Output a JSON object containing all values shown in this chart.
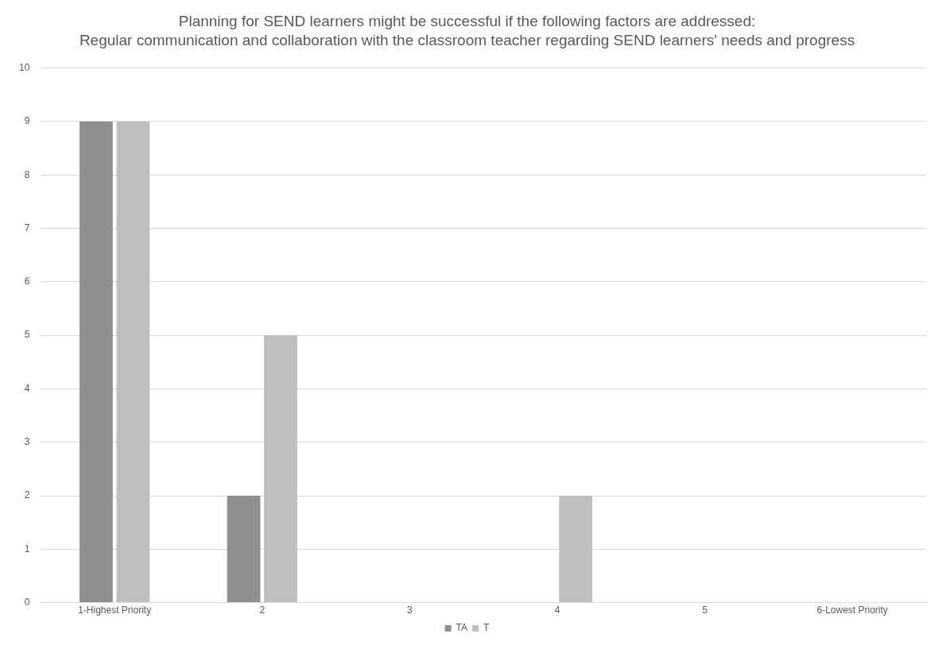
{
  "chart_data": {
    "type": "bar",
    "title": "Planning for SEND learners might be successful if the following factors are addressed:",
    "subtitle": "Regular communication and collaboration with the classroom teacher regarding SEND learners' needs and progress",
    "categories": [
      "1-Highest Priority",
      "2",
      "3",
      "4",
      "5",
      "6-Lowest Priority"
    ],
    "series": [
      {
        "name": "TA",
        "color": "#8f8f8f",
        "values": [
          9,
          2,
          0,
          0,
          0,
          0
        ]
      },
      {
        "name": "T",
        "color": "#bfbfbf",
        "values": [
          9,
          5,
          0,
          2,
          0,
          0
        ]
      }
    ],
    "ylim": [
      0,
      10
    ],
    "yticks": [
      0,
      1,
      2,
      3,
      4,
      5,
      6,
      7,
      8,
      9,
      10
    ],
    "grid": "y",
    "legend": "bottom"
  }
}
